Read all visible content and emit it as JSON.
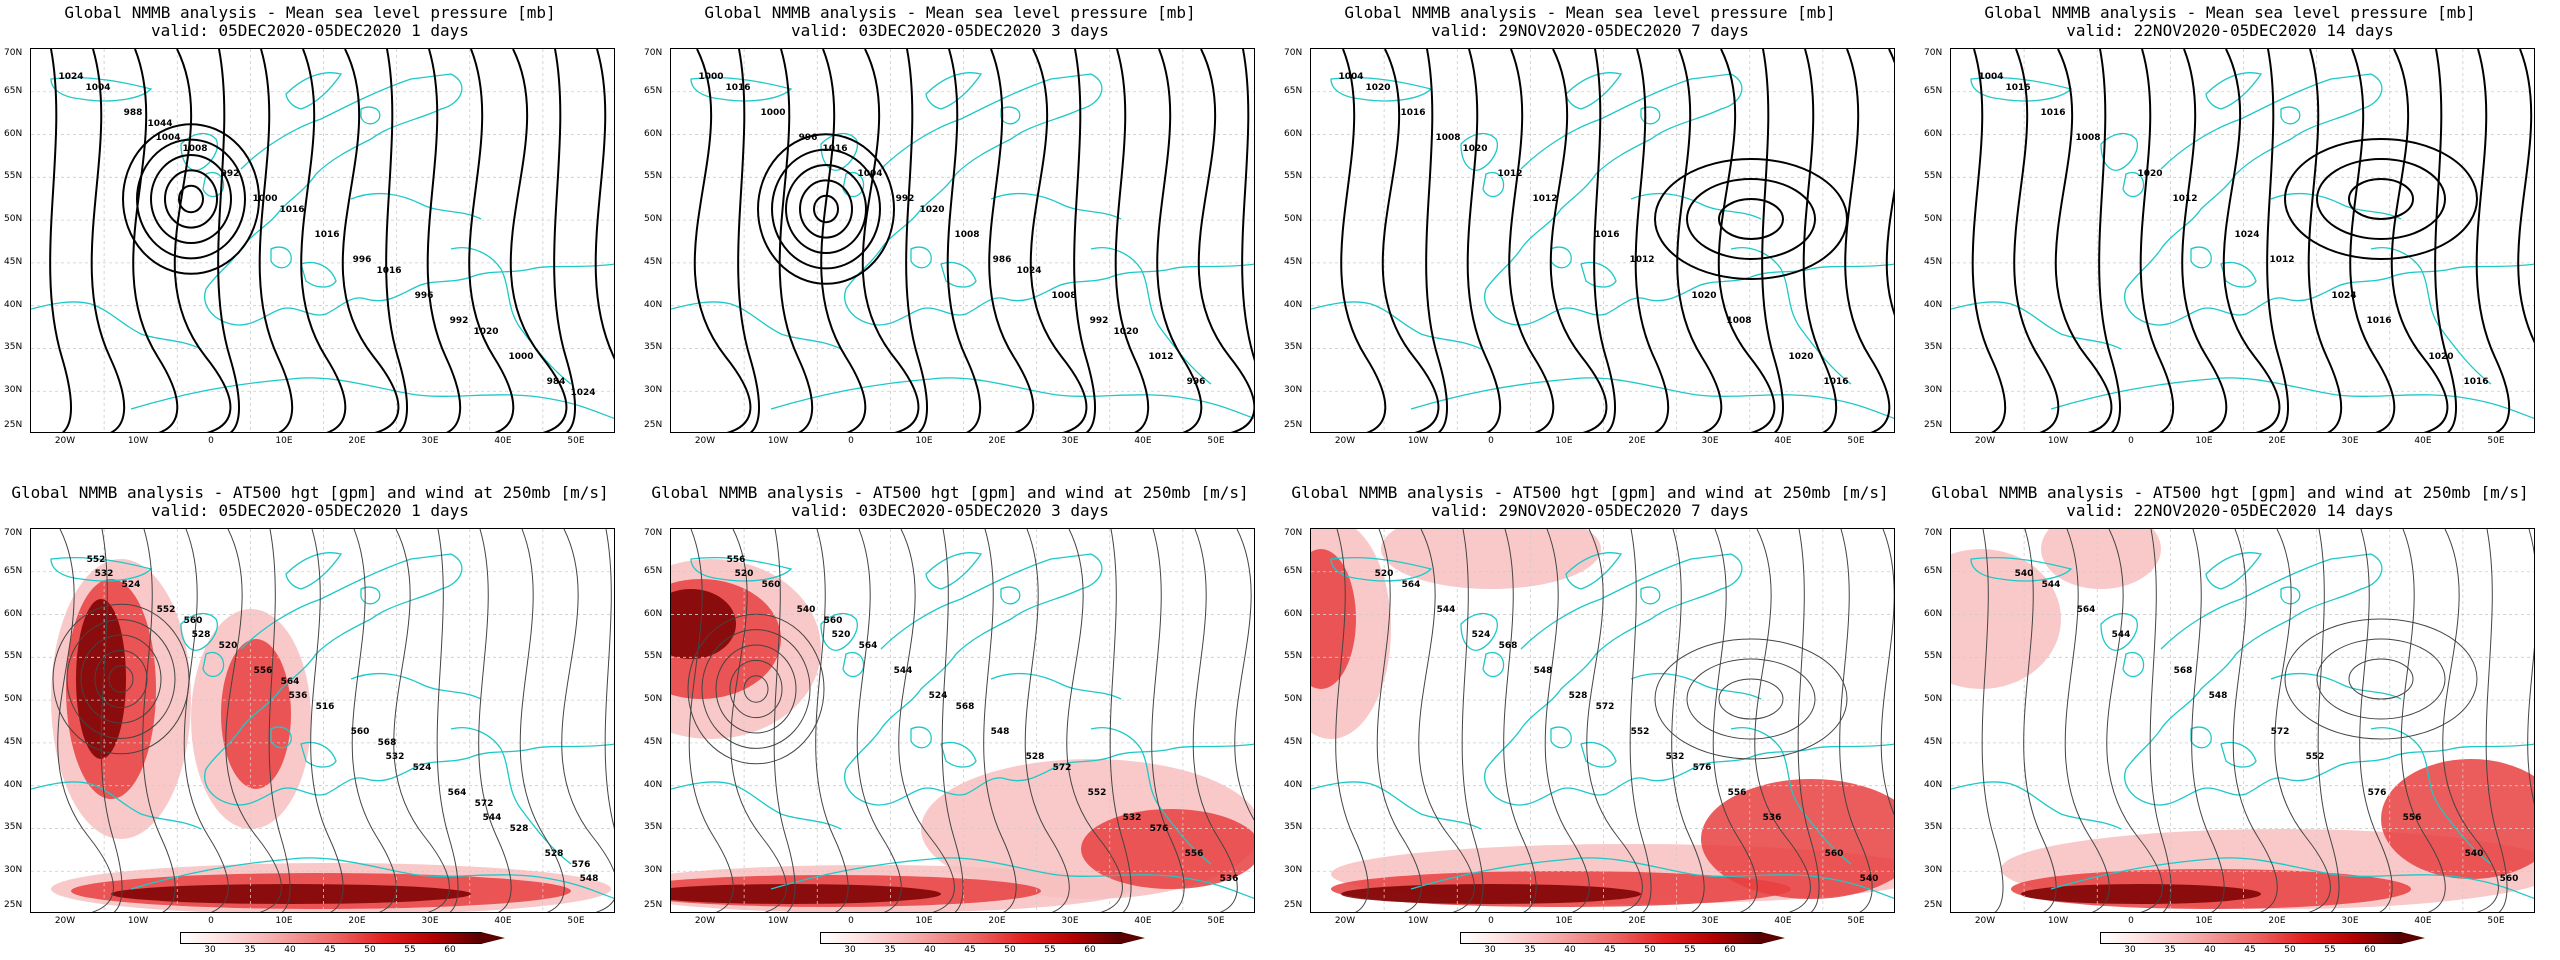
{
  "panels": [
    {
      "title1": "Global NMMB analysis - Mean sea level pressure [mb]",
      "title2": "valid: 05DEC2020-05DEC2020  1 days",
      "labels": [
        "1024",
        "1004",
        "1000",
        "996",
        "992",
        "984",
        "988",
        "992",
        "1016",
        "996",
        "1000",
        "1004",
        "1008",
        "1016",
        "1016",
        "1020",
        "1024",
        "1044"
      ]
    },
    {
      "title1": "Global NMMB analysis - Mean sea level pressure [mb]",
      "title2": "valid: 03DEC2020-05DEC2020  3 days",
      "labels": [
        "1000",
        "996",
        "992",
        "986",
        "992",
        "996",
        "1000",
        "1004",
        "1008",
        "1008",
        "1012",
        "1016",
        "1016",
        "1020",
        "1024",
        "1020"
      ]
    },
    {
      "title1": "Global NMMB analysis - Mean sea level pressure [mb]",
      "title2": "valid: 29NOV2020-05DEC2020  7 days",
      "labels": [
        "1004",
        "1008",
        "1012",
        "1012",
        "1008",
        "1016",
        "1016",
        "1012",
        "1016",
        "1020",
        "1020",
        "1020",
        "1020"
      ]
    },
    {
      "title1": "Global NMMB analysis - Mean sea level pressure [mb]",
      "title2": "valid: 22NOV2020-05DEC2020  14 days",
      "labels": [
        "1004",
        "1008",
        "1012",
        "1012",
        "1016",
        "1016",
        "1016",
        "1020",
        "1024",
        "1024",
        "1020",
        "1016"
      ]
    },
    {
      "title1": "Global NMMB analysis - AT500 hgt [gpm] and wind at 250mb [m/s]",
      "title2": "valid: 05DEC2020-05DEC2020  1 days",
      "labels": [
        "532",
        "528",
        "536",
        "532",
        "544",
        "548",
        "552",
        "556",
        "560",
        "564",
        "528",
        "524",
        "520",
        "516",
        "524",
        "528",
        "552",
        "560",
        "564",
        "568",
        "572",
        "576"
      ]
    },
    {
      "title1": "Global NMMB analysis - AT500 hgt [gpm] and wind at 250mb [m/s]",
      "title2": "valid: 03DEC2020-05DEC2020  3 days",
      "labels": [
        "520",
        "520",
        "524",
        "528",
        "532",
        "536",
        "540",
        "544",
        "548",
        "552",
        "556",
        "560",
        "564",
        "568",
        "572",
        "576",
        "556",
        "560"
      ]
    },
    {
      "title1": "Global NMMB analysis - AT500 hgt [gpm] and wind at 250mb [m/s]",
      "title2": "valid: 29NOV2020-05DEC2020  7 days",
      "labels": [
        "520",
        "524",
        "528",
        "532",
        "536",
        "540",
        "544",
        "548",
        "552",
        "556",
        "560",
        "564",
        "568",
        "572",
        "576"
      ]
    },
    {
      "title1": "Global NMMB analysis - AT500 hgt [gpm] and wind at 250mb [m/s]",
      "title2": "valid: 22NOV2020-05DEC2020  14 days",
      "labels": [
        "540",
        "544",
        "548",
        "552",
        "556",
        "560",
        "564",
        "568",
        "572",
        "576",
        "540",
        "544"
      ]
    }
  ],
  "lat_labels": [
    "70N",
    "65N",
    "60N",
    "55N",
    "50N",
    "45N",
    "40N",
    "35N",
    "30N",
    "25N"
  ],
  "lon_labels": [
    "20W",
    "10W",
    "0",
    "10E",
    "20E",
    "30E",
    "40E",
    "50E"
  ],
  "colorbar_ticks": [
    "30",
    "35",
    "40",
    "45",
    "50",
    "55",
    "60"
  ],
  "colors": {
    "coast": "#1ec8c8",
    "isobar": "#000000",
    "wind_light": "#f8c0c0",
    "wind_mid": "#e84040",
    "wind_dark": "#7a0000"
  }
}
